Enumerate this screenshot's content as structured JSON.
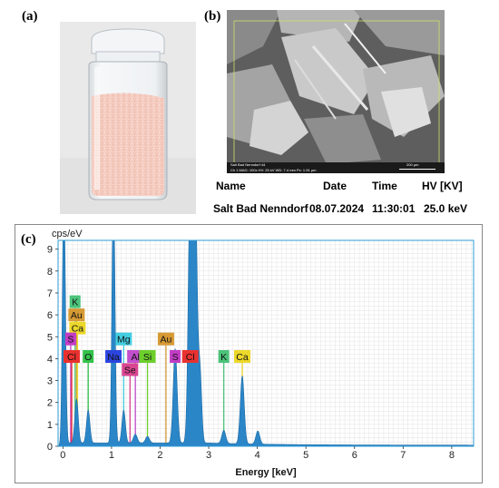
{
  "labels": {
    "a": "(a)",
    "b": "(b)",
    "c": "(c)"
  },
  "sem_footer": {
    "sample": "Salt Bad Nenndorf 44",
    "params": "Ch 1   MAG: 100x   HV: 25 kV   WD: 7.4 mm   Px: 1.91 µm",
    "scale": "200 µm"
  },
  "info_table": {
    "headers": [
      "Name",
      "Date",
      "Time",
      "HV [KV]"
    ],
    "row": [
      "Salt Bad Nenndorf",
      "08.07.2024",
      "11:30:01",
      "25.0 keV"
    ]
  },
  "colors": {
    "spectrum_fill": "#2b86c8",
    "plot_border": "#2d9bd6",
    "grid": "#e3e3e3"
  },
  "chart_data": {
    "type": "area",
    "ylabel": "cps/eV",
    "xlabel": "Energy [keV]",
    "xlim": [
      -0.1,
      8.45
    ],
    "ylim": [
      0,
      9.4
    ],
    "xticks": [
      0,
      1,
      2,
      3,
      4,
      5,
      6,
      7,
      8
    ],
    "yticks": [
      0,
      1,
      2,
      3,
      4,
      5,
      6,
      7,
      8,
      9
    ],
    "grid": true,
    "background_level": 0.1,
    "peaks": [
      {
        "x": 0.02,
        "h": 12,
        "w": 0.03
      },
      {
        "x": 0.28,
        "h": 2.0,
        "w": 0.035
      },
      {
        "x": 0.52,
        "h": 1.5,
        "w": 0.035
      },
      {
        "x": 1.04,
        "h": 12,
        "w": 0.03
      },
      {
        "x": 1.25,
        "h": 1.5,
        "w": 0.035
      },
      {
        "x": 1.49,
        "h": 0.4,
        "w": 0.04
      },
      {
        "x": 1.74,
        "h": 0.3,
        "w": 0.04
      },
      {
        "x": 2.31,
        "h": 4.3,
        "w": 0.04
      },
      {
        "x": 2.62,
        "h": 12,
        "w": 0.04
      },
      {
        "x": 2.72,
        "h": 12,
        "w": 0.04
      },
      {
        "x": 2.82,
        "h": 3.2,
        "w": 0.035
      },
      {
        "x": 3.31,
        "h": 0.6,
        "w": 0.04
      },
      {
        "x": 3.69,
        "h": 3.1,
        "w": 0.04
      },
      {
        "x": 4.01,
        "h": 0.6,
        "w": 0.04
      }
    ],
    "element_markers": [
      {
        "label": "K",
        "x": 0.25,
        "y": 6.6,
        "bg": "#4cc37a",
        "line": "#4cc37a"
      },
      {
        "label": "Au",
        "x": 0.28,
        "y": 6.0,
        "bg": "#d69a35",
        "line": "#d69a35"
      },
      {
        "label": "Ca",
        "x": 0.3,
        "y": 5.4,
        "bg": "#ecd82a",
        "line": "#ecd82a"
      },
      {
        "label": "S",
        "x": 0.16,
        "y": 4.9,
        "bg": "#c23cc6",
        "line": "#c23cc6"
      },
      {
        "label": "Cl",
        "x": 0.18,
        "y": 4.1,
        "bg": "#e9312f",
        "line": "#e9312f"
      },
      {
        "label": "O",
        "x": 0.52,
        "y": 4.1,
        "bg": "#33c24a",
        "line": "#33c24a"
      },
      {
        "label": "Mg",
        "x": 1.25,
        "y": 4.9,
        "bg": "#42cde0",
        "line": "#42cde0"
      },
      {
        "label": "Na",
        "x": 1.04,
        "y": 4.1,
        "bg": "#2c45e0",
        "line": "#2c45e0"
      },
      {
        "label": "Al",
        "x": 1.49,
        "y": 4.1,
        "bg": "#c24fcd",
        "line": "#c24fcd"
      },
      {
        "label": "Se",
        "x": 1.38,
        "y": 3.5,
        "bg": "#d94591",
        "line": "#d94591"
      },
      {
        "label": "Si",
        "x": 1.74,
        "y": 4.1,
        "bg": "#6ccf2c",
        "line": "#6ccf2c"
      },
      {
        "label": "Au",
        "x": 2.12,
        "y": 4.9,
        "bg": "#d69a35",
        "line": "#d69a35"
      },
      {
        "label": "S",
        "x": 2.31,
        "y": 4.1,
        "bg": "#c23cc6",
        "line": "#c23cc6"
      },
      {
        "label": "Cl",
        "x": 2.62,
        "y": 4.1,
        "bg": "#e9312f",
        "line": "#e9312f"
      },
      {
        "label": "K",
        "x": 3.31,
        "y": 4.1,
        "bg": "#4cc37a",
        "line": "#4cc37a"
      },
      {
        "label": "Ca",
        "x": 3.69,
        "y": 4.1,
        "bg": "#ecd82a",
        "line": "#ecd82a"
      }
    ]
  }
}
